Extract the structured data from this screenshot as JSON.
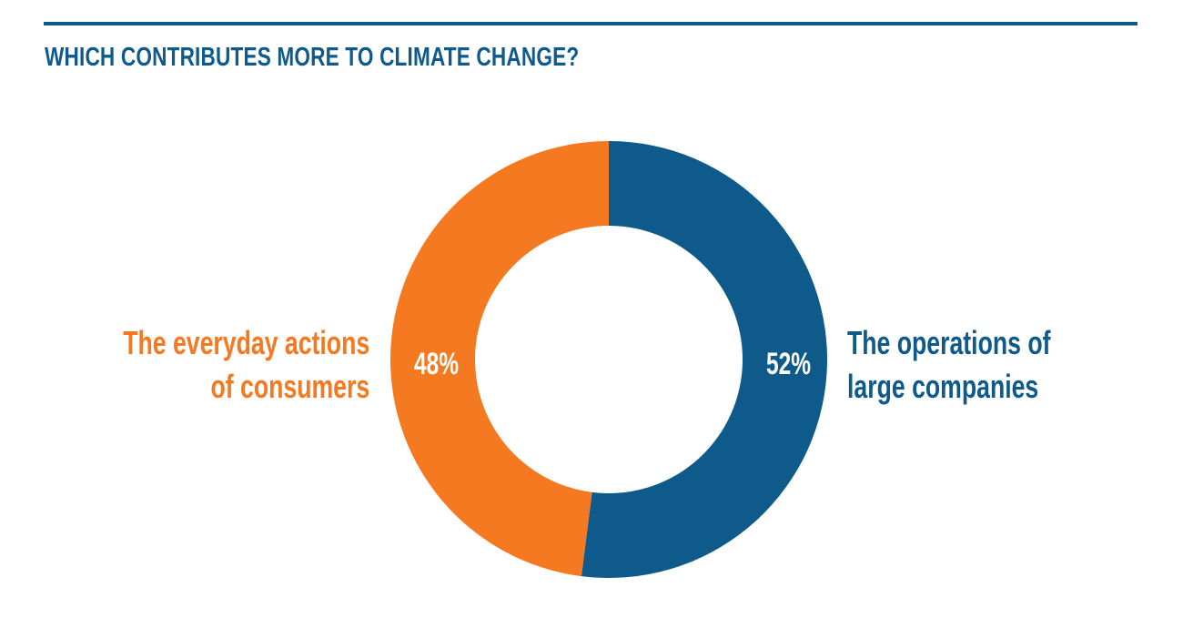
{
  "header": {
    "title": "WHICH CONTRIBUTES MORE TO CLIMATE CHANGE?"
  },
  "colors": {
    "accent_blue": "#0e5a8a",
    "accent_orange": "#f47920",
    "background": "#ffffff"
  },
  "chart_data": {
    "type": "pie",
    "subtype": "donut",
    "title": "WHICH CONTRIBUTES MORE TO CLIMATE CHANGE?",
    "categories": [
      "The operations of large companies",
      "The everyday actions of consumers"
    ],
    "values": [
      52,
      48
    ],
    "unit": "%",
    "colors": [
      "#0e5a8a",
      "#f47920"
    ],
    "value_labels": [
      "52%",
      "48%"
    ],
    "start_angle": "12 o'clock, clockwise",
    "legend": "none (direct labels beside segments)"
  },
  "labels": {
    "left": {
      "line1": "The everyday actions",
      "line2": "of consumers",
      "value": "48%"
    },
    "right": {
      "line1": "The operations of",
      "line2": "large companies",
      "value": "52%"
    }
  }
}
